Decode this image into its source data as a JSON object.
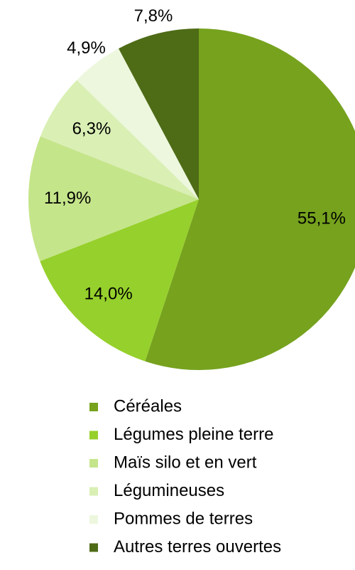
{
  "chart_data": {
    "type": "pie",
    "categories": [
      "Céréales",
      "Légumes pleine terre",
      "Maïs silo et en vert",
      "Légumineuses",
      "Pommes de terres",
      "Autres terres ouvertes"
    ],
    "values": [
      55.1,
      14.0,
      11.9,
      6.3,
      4.9,
      7.8
    ],
    "value_labels": [
      "55,1%",
      "14,0%",
      "11,9%",
      "6,3%",
      "4,9%",
      "7,8%"
    ],
    "colors": [
      "#76a21e",
      "#96d02c",
      "#c5e58a",
      "#d9efb4",
      "#edf7dd",
      "#4e6b16"
    ],
    "legend": "bottom"
  }
}
